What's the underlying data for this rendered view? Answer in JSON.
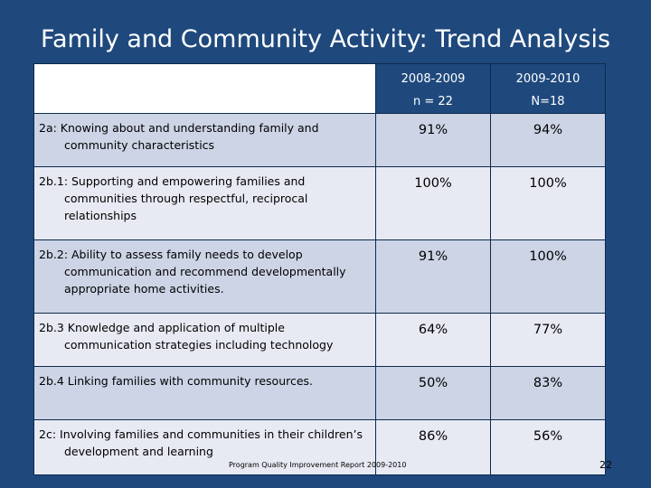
{
  "title": "Family and Community Activity: Trend Analysis",
  "columns": [
    {
      "year": "2008-2009",
      "n": "n = 22"
    },
    {
      "year": "2009-2010",
      "n": "N=18"
    }
  ],
  "rows": [
    {
      "label": "2a: Knowing about and understanding family and community characteristics",
      "v1": "91%",
      "v2": "94%"
    },
    {
      "label": "2b.1: Supporting and empowering families and communities through respectful, reciprocal relationships",
      "v1": "100%",
      "v2": "100%"
    },
    {
      "label": "2b.2:  Ability to assess family needs to develop communication and recommend developmentally appropriate home activities.",
      "v1": "91%",
      "v2": "100%"
    },
    {
      "label": "2b.3 Knowledge and application of multiple communication strategies including technology",
      "v1": "64%",
      "v2": "77%"
    },
    {
      "label": "2b.4 Linking families with community resources.",
      "v1": "50%",
      "v2": "83%"
    },
    {
      "label": "2c: Involving families and communities in their children’s development and learning",
      "v1": "86%",
      "v2": "56%"
    }
  ],
  "footer": "Program Quality Improvement Report 2009-2010",
  "page_number": "22"
}
